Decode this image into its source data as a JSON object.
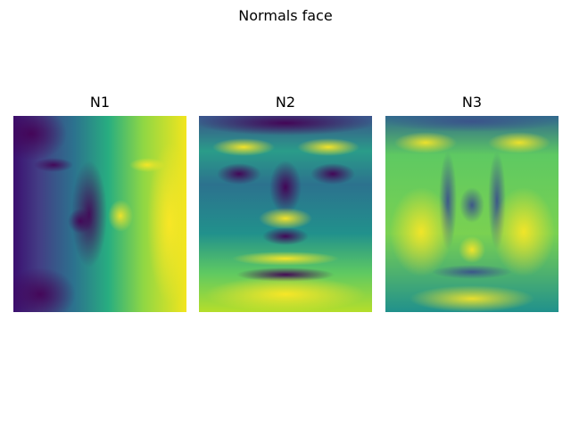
{
  "chart_data": [
    {
      "type": "heatmap",
      "suptitle": "Normals face",
      "title": "N1",
      "colormap": "viridis",
      "description_of_pattern": "x-component of surface normals: dark on left side of face, bright on right side"
    },
    {
      "type": "heatmap",
      "title": "N2",
      "colormap": "viridis",
      "description_of_pattern": "y-component of surface normals: bright brow, nose tip and lip ridges, dark eye sockets and under-nose"
    },
    {
      "type": "heatmap",
      "title": "N3",
      "colormap": "viridis",
      "description_of_pattern": "z-component of surface normals: bright frontal areas, dark nose sides and face contours"
    }
  ],
  "figure": {
    "suptitle": "Normals face"
  }
}
